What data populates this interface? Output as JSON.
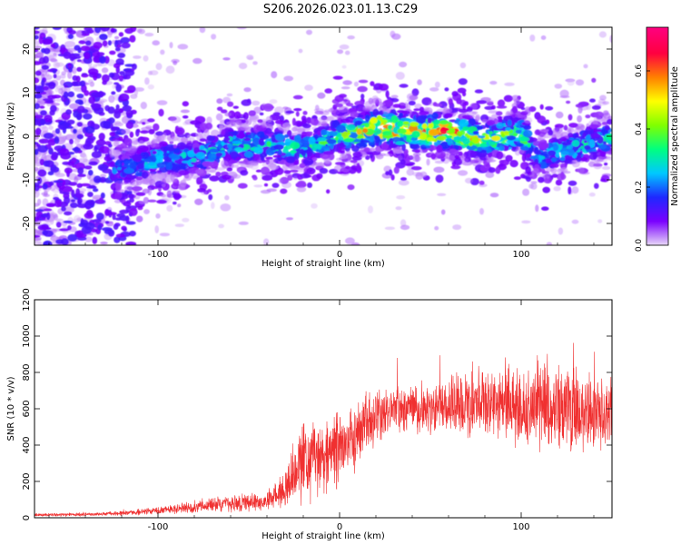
{
  "title": "S206.2026.023.01.13.C29",
  "chart_data": [
    {
      "type": "heatmap",
      "xlabel": "Height of straight line (km)",
      "ylabel": "Frequency (Hz)",
      "xlim": [
        -168,
        150
      ],
      "ylim": [
        -25,
        25
      ],
      "xticks": [
        -100,
        0,
        100
      ],
      "xtick_labels": [
        "-100",
        "0",
        "100"
      ],
      "yticks": [
        -20,
        -10,
        0,
        10,
        20
      ],
      "ytick_labels": [
        "-20",
        "-10",
        "0",
        "10",
        "20"
      ],
      "colorbar": {
        "label": "Normalized spectral amplitude",
        "range": [
          0,
          0.75
        ],
        "ticks": [
          0.0,
          0.2,
          0.4,
          0.6
        ],
        "tick_labels": [
          "0.0",
          "0.2",
          "0.4",
          "0.6"
        ],
        "colormap": [
          "#e8d8f8",
          "#7a00ff",
          "#1e28ff",
          "#00c8ff",
          "#00ff80",
          "#80ff00",
          "#ffff00",
          "#ff8000",
          "#ff0040",
          "#ff0080"
        ]
      },
      "ridge": {
        "x": [
          -120,
          -100,
          -80,
          -60,
          -40,
          -20,
          0,
          20,
          40,
          60,
          80,
          100,
          110,
          150
        ],
        "freq": [
          -8,
          -5,
          -5,
          -2,
          -2,
          -3,
          0,
          2,
          1,
          1,
          -1,
          1,
          -5,
          0
        ],
        "peak_amplitude": [
          0.25,
          0.3,
          0.3,
          0.35,
          0.35,
          0.35,
          0.4,
          0.7,
          0.6,
          0.7,
          0.5,
          0.45,
          0.3,
          0.35
        ]
      }
    },
    {
      "type": "line",
      "xlabel": "Height of straight line (km)",
      "ylabel": "SNR (10 * v/v)",
      "xlim": [
        -168,
        150
      ],
      "ylim": [
        0,
        1200
      ],
      "xticks": [
        -100,
        0,
        100
      ],
      "xtick_labels": [
        "-100",
        "0",
        "100"
      ],
      "yticks": [
        0,
        200,
        400,
        600,
        800,
        1000,
        1200
      ],
      "ytick_labels": [
        "0",
        "200",
        "400",
        "600",
        "800",
        "1000",
        "1200"
      ],
      "series": [
        {
          "name": "SNR",
          "color": "#f03030",
          "envelope_x": [
            -168,
            -140,
            -120,
            -100,
            -80,
            -60,
            -40,
            -30,
            -25,
            -20,
            -10,
            0,
            10,
            20,
            30,
            40,
            60,
            80,
            100,
            110,
            120,
            130,
            140,
            150
          ],
          "envelope_mean": [
            15,
            18,
            25,
            40,
            60,
            80,
            90,
            150,
            280,
            300,
            330,
            380,
            450,
            560,
            600,
            600,
            620,
            630,
            610,
            620,
            600,
            580,
            560,
            560
          ],
          "envelope_spread": [
            10,
            10,
            15,
            25,
            40,
            55,
            65,
            120,
            230,
            250,
            260,
            260,
            210,
            170,
            150,
            150,
            200,
            220,
            260,
            300,
            280,
            270,
            250,
            230
          ]
        }
      ]
    }
  ]
}
